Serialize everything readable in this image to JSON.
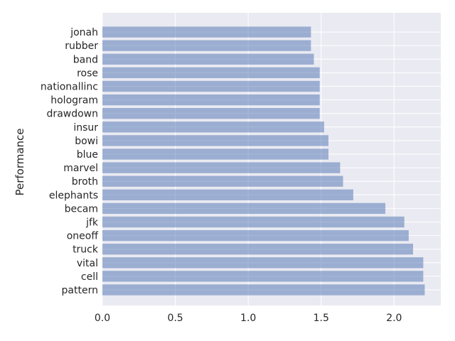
{
  "chart_data": {
    "type": "bar",
    "orientation": "horizontal",
    "ylabel": "Performance",
    "xlabel": "",
    "title": "",
    "xlim": [
      0,
      2.32
    ],
    "xticks": [
      "0.0",
      "0.5",
      "1.0",
      "1.5",
      "2.0"
    ],
    "grid": true,
    "bar_color": "#4c72b0",
    "bar_alpha": 0.5,
    "background": "#eaeaf2",
    "categories": [
      "pattern",
      "cell",
      "vital",
      "truck",
      "oneoff",
      "jfk",
      "becam",
      "elephants",
      "broth",
      "marvel",
      "blue",
      "bowi",
      "insur",
      "drawdown",
      "hologram",
      "nationallinc",
      "rose",
      "band",
      "rubber",
      "jonah"
    ],
    "values": [
      2.21,
      2.2,
      2.2,
      2.13,
      2.1,
      2.07,
      1.94,
      1.72,
      1.65,
      1.63,
      1.55,
      1.55,
      1.52,
      1.49,
      1.49,
      1.49,
      1.49,
      1.45,
      1.43,
      1.43
    ]
  }
}
